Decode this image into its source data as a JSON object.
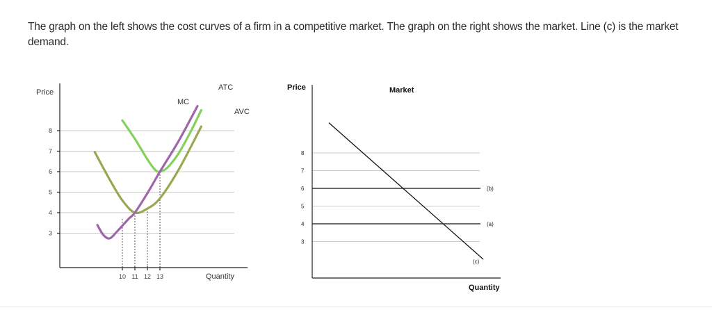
{
  "question": "The graph on the left shows the cost curves of a firm in a competitive market. The graph on the right shows the market. Line (c) is the market demand.",
  "chart_data": [
    {
      "type": "line",
      "name": "firm",
      "ylabel": "Price",
      "xlabel": "Quantity",
      "y_ticks": [
        3,
        4,
        5,
        6,
        7,
        8
      ],
      "x_ticks": [
        10,
        11,
        12,
        13
      ],
      "x_tick_labels": [
        "10",
        "11",
        "12",
        "13"
      ],
      "series": [
        {
          "name": "MC",
          "color": "#a066aa",
          "points": [
            [
              8.0,
              3.4
            ],
            [
              8.5,
              2.9
            ],
            [
              9.0,
              2.75
            ],
            [
              9.6,
              3.1
            ],
            [
              10.5,
              3.7
            ],
            [
              11.0,
              4.0
            ],
            [
              12.0,
              4.95
            ],
            [
              13.0,
              6.0
            ],
            [
              14.5,
              7.5
            ],
            [
              16.0,
              9.2
            ]
          ]
        },
        {
          "name": "ATC",
          "color": "#86d05c",
          "points": [
            [
              10.0,
              8.5
            ],
            [
              11.0,
              7.6
            ],
            [
              12.0,
              6.6
            ],
            [
              12.6,
              6.1
            ],
            [
              13.0,
              6.0
            ],
            [
              13.6,
              6.2
            ],
            [
              14.5,
              6.9
            ],
            [
              15.5,
              8.0
            ],
            [
              16.3,
              9.0
            ]
          ]
        },
        {
          "name": "AVC",
          "color": "#98a852",
          "points": [
            [
              7.8,
              6.95
            ],
            [
              9.0,
              5.6
            ],
            [
              10.0,
              4.6
            ],
            [
              11.0,
              4.0
            ],
            [
              12.0,
              4.2
            ],
            [
              13.0,
              4.7
            ],
            [
              14.5,
              6.1
            ],
            [
              16.3,
              8.2
            ]
          ]
        }
      ],
      "dashed_x": [
        10,
        11,
        12,
        13
      ]
    },
    {
      "type": "line",
      "name": "market",
      "title": "Market",
      "ylabel": "Price",
      "xlabel": "Quantity",
      "y_ticks": [
        3,
        4,
        5,
        6,
        7,
        8
      ],
      "horizontal_lines": [
        {
          "label": "(b)",
          "y": 6
        },
        {
          "label": "(a)",
          "y": 4
        }
      ],
      "demand": {
        "label": "(c)",
        "from": [
          0.8,
          9.7
        ],
        "to": [
          8.2,
          2.0
        ]
      }
    }
  ]
}
